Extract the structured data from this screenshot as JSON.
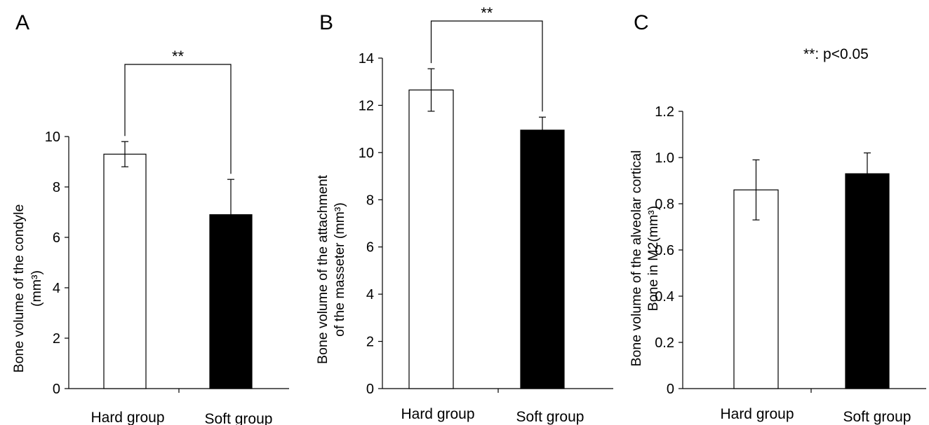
{
  "note": "**: p<0.05",
  "chart_data": [
    {
      "panel": "A",
      "type": "bar",
      "categories": [
        "Hard group",
        "Soft group"
      ],
      "values": [
        9.3,
        6.9
      ],
      "error": [
        0.5,
        1.4
      ],
      "ylabel_lines": [
        "Bone volume of the condyle",
        "(mm³)"
      ],
      "ylim": [
        0,
        10
      ],
      "yticks": [
        "0",
        "2",
        "4",
        "6",
        "8",
        "10"
      ],
      "significance": "**",
      "colors": [
        "#ffffff",
        "#000000"
      ]
    },
    {
      "panel": "B",
      "type": "bar",
      "categories": [
        "Hard group",
        "Soft group"
      ],
      "values": [
        12.65,
        10.95
      ],
      "error": [
        0.9,
        0.55
      ],
      "ylabel_lines": [
        "Bone volume of the  attachment",
        "of the masseter (mm³)"
      ],
      "ylim": [
        0,
        14
      ],
      "yticks": [
        "0",
        "2",
        "4",
        "6",
        "8",
        "10",
        "12",
        "14"
      ],
      "significance": "**",
      "colors": [
        "#ffffff",
        "#000000"
      ]
    },
    {
      "panel": "C",
      "type": "bar",
      "categories": [
        "Hard group",
        "Soft group"
      ],
      "values": [
        0.86,
        0.93
      ],
      "error": [
        0.13,
        0.09
      ],
      "ylabel_lines": [
        "Bone volume of the alveolar cortical",
        "Bone in M2(mm³)"
      ],
      "ylim": [
        0,
        1.2
      ],
      "yticks": [
        "0",
        "0.2",
        "0.4",
        "0.6",
        "0.8",
        "1.0",
        "1.2"
      ],
      "significance": "",
      "colors": [
        "#ffffff",
        "#000000"
      ]
    }
  ]
}
